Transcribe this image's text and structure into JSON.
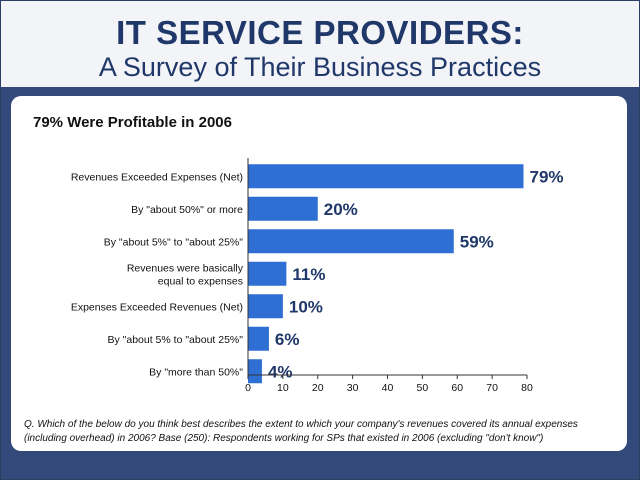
{
  "header": {
    "title": "IT SERVICE PROVIDERS:",
    "subtitle": "A Survey of Their Business Practices"
  },
  "panel": {
    "heading": "79% Were Profitable in 2006",
    "footnote_line1": "Q. Which of the below do you think best describes the extent to which your company's revenues covered its annual expenses",
    "footnote_line2": "(including overhead) in 2006? Base (250):  Respondents working for SPs that existed in 2006 (excluding \"don't know\")"
  },
  "colors": {
    "bar": "#2f6fd3",
    "value_label": "#1f3769",
    "frame": "#33497a"
  },
  "chart_data": {
    "type": "bar",
    "orientation": "horizontal",
    "categories": [
      [
        "Revenues Exceeded Expenses (Net)"
      ],
      [
        "By \"about 50%\" or more"
      ],
      [
        "By \"about 5%\" to \"about 25%\""
      ],
      [
        "Revenues were basically",
        "equal to expenses"
      ],
      [
        "Expenses Exceeded Revenues (Net)"
      ],
      [
        "By \"about 5% to \"about 25%\""
      ],
      [
        "By \"more than 50%\""
      ]
    ],
    "values": [
      79,
      20,
      59,
      11,
      10,
      6,
      4
    ],
    "value_labels": [
      "79%",
      "20%",
      "59%",
      "11%",
      "10%",
      "6%",
      "4%"
    ],
    "xlim": [
      0,
      80
    ],
    "xticks": [
      0,
      10,
      20,
      30,
      40,
      50,
      60,
      70,
      80
    ],
    "grid": false,
    "legend": "none"
  }
}
